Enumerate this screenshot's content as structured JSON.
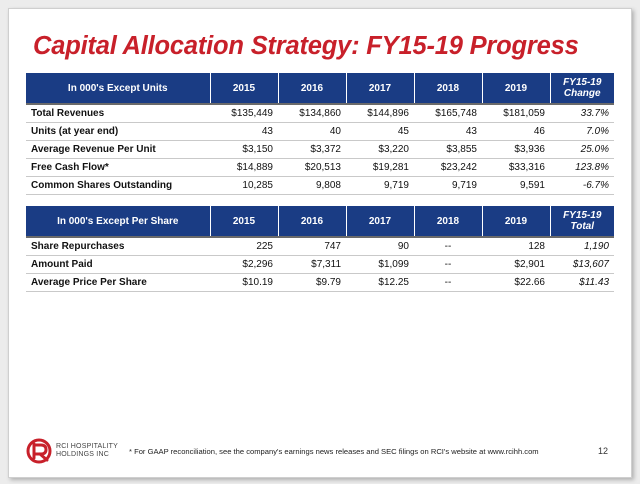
{
  "title": "Capital Allocation Strategy: FY15-19 Progress",
  "table1": {
    "header": {
      "label": "In 000's Except Units",
      "years": [
        "2015",
        "2016",
        "2017",
        "2018",
        "2019"
      ],
      "last_line1": "FY15-19",
      "last_line2": "Change"
    },
    "rows": [
      {
        "label": "Total Revenues",
        "values": [
          "$135,449",
          "$134,860",
          "$144,896",
          "$165,748",
          "$181,059"
        ],
        "last": "33.7%"
      },
      {
        "label": "Units (at year end)",
        "values": [
          "43",
          "40",
          "45",
          "43",
          "46"
        ],
        "last": "7.0%"
      },
      {
        "label": "Average Revenue Per Unit",
        "values": [
          "$3,150",
          "$3,372",
          "$3,220",
          "$3,855",
          "$3,936"
        ],
        "last": "25.0%"
      },
      {
        "label": "Free Cash Flow*",
        "values": [
          "$14,889",
          "$20,513",
          "$19,281",
          "$23,242",
          "$33,316"
        ],
        "last": "123.8%"
      },
      {
        "label": "Common Shares Outstanding",
        "values": [
          "10,285",
          "9,808",
          "9,719",
          "9,719",
          "9,591"
        ],
        "last": "-6.7%"
      }
    ]
  },
  "table2": {
    "header": {
      "label": "In 000's Except Per Share",
      "years": [
        "2015",
        "2016",
        "2017",
        "2018",
        "2019"
      ],
      "last_line1": "FY15-19",
      "last_line2": "Total"
    },
    "rows": [
      {
        "label": "Share Repurchases",
        "values": [
          "225",
          "747",
          "90",
          "--",
          "128"
        ],
        "last": "1,190"
      },
      {
        "label": "Amount Paid",
        "values": [
          "$2,296",
          "$7,311",
          "$1,099",
          "--",
          "$2,901"
        ],
        "last": "$13,607"
      },
      {
        "label": "Average Price Per Share",
        "values": [
          "$10.19",
          "$9.79",
          "$12.25",
          "--",
          "$22.66"
        ],
        "last": "$11.43"
      }
    ]
  },
  "logo": {
    "line1": "RCI HOSPITALITY",
    "line2": "HOLDINGS INC",
    "color": "#c8202a",
    "icon": "rci-logo-icon"
  },
  "footnote": "* For GAAP reconciliation, see the company's earnings news releases and SEC filings on RCI's website at www.rcihh.com",
  "page_number": "12",
  "colors": {
    "title": "#c8202a",
    "header_bg": "#1a3c84"
  }
}
